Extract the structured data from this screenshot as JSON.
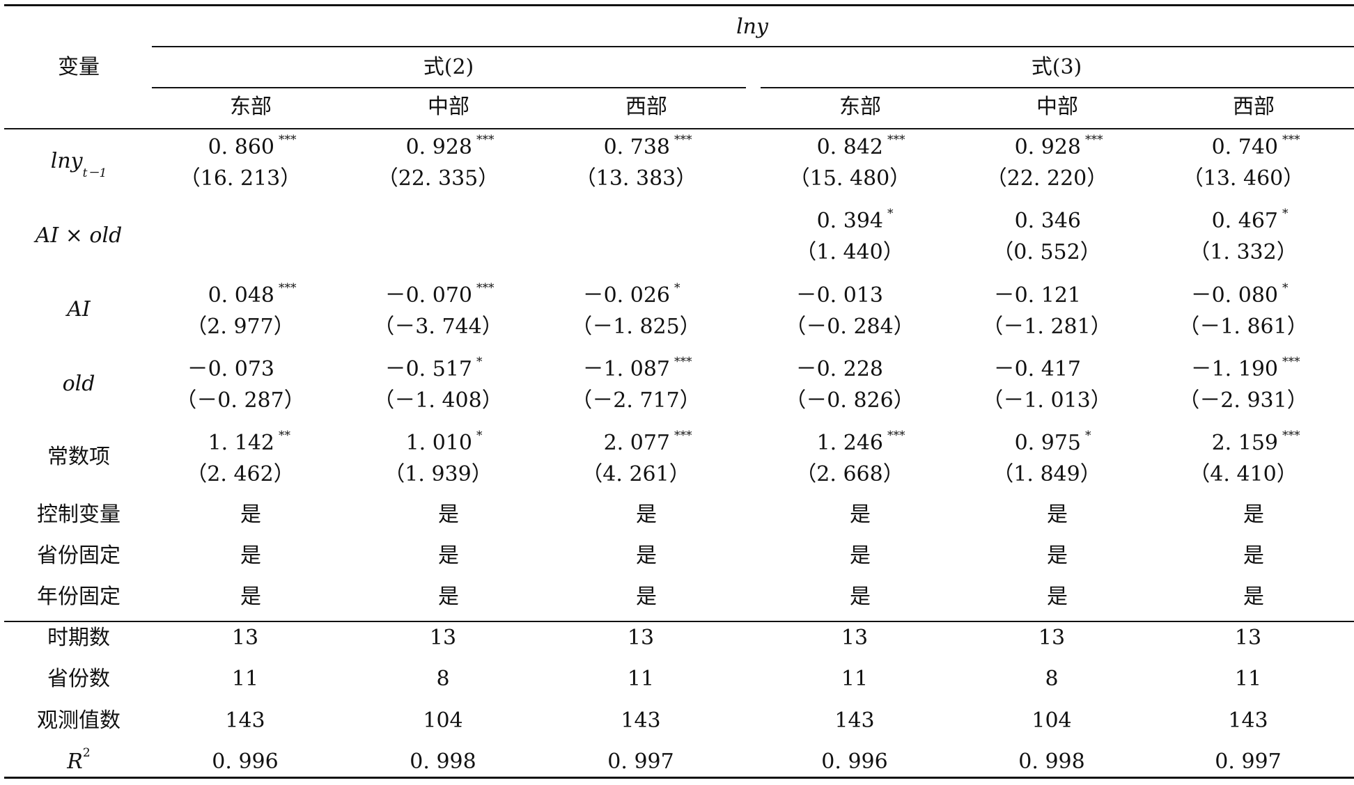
{
  "header": {
    "variable_label": "变量",
    "dependent": "lny",
    "groups": [
      "式(2)",
      "式(3)"
    ],
    "regions": [
      "东部",
      "中部",
      "西部",
      "东部",
      "中部",
      "西部"
    ]
  },
  "rows": [
    {
      "label": "lny",
      "label_sub": "t－1",
      "coef": [
        "0. 860",
        "0. 928",
        "0. 738",
        "0. 842",
        "0. 928",
        "0. 740"
      ],
      "stars": [
        "***",
        "***",
        "***",
        "***",
        "***",
        "***"
      ],
      "tstat": [
        "（16. 213）",
        "（22. 335）",
        "（13. 383）",
        "（15. 480）",
        "（22. 220）",
        "（13. 460）"
      ]
    },
    {
      "label": "AI × old",
      "coef": [
        "",
        "",
        "",
        "0. 394",
        "0. 346",
        "0. 467"
      ],
      "stars": [
        "",
        "",
        "",
        "*",
        "",
        "*"
      ],
      "tstat": [
        "",
        "",
        "",
        "（1. 440）",
        "（0. 552）",
        "（1. 332）"
      ]
    },
    {
      "label": "AI",
      "coef": [
        "0. 048",
        "－0. 070",
        "－0. 026",
        "－0. 013",
        "－0. 121",
        "－0. 080"
      ],
      "stars": [
        "***",
        "***",
        "*",
        "",
        "",
        "*"
      ],
      "tstat": [
        "（2. 977）",
        "（－3. 744）",
        "（－1. 825）",
        "（－0. 284）",
        "（－1. 281）",
        "（－1. 861）"
      ]
    },
    {
      "label": "old",
      "coef": [
        "－0. 073",
        "－0. 517",
        "－1. 087",
        "－0. 228",
        "－0. 417",
        "－1. 190"
      ],
      "stars": [
        "",
        "*",
        "***",
        "",
        "",
        "***"
      ],
      "tstat": [
        "（－0. 287）",
        "（－1. 408）",
        "（－2. 717）",
        "（－0. 826）",
        "（－1. 013）",
        "（－2. 931）"
      ]
    },
    {
      "label": "常数项",
      "coef": [
        "1. 142",
        "1. 010",
        "2. 077",
        "1. 246",
        "0. 975",
        "2. 159"
      ],
      "stars": [
        "**",
        "*",
        "***",
        "***",
        "*",
        "***"
      ],
      "tstat": [
        "（2. 462）",
        "（1. 939）",
        "（4. 261）",
        "（2. 668）",
        "（1. 849）",
        "（4. 410）"
      ]
    }
  ],
  "fixed_rows": [
    {
      "label": "控制变量",
      "values": [
        "是",
        "是",
        "是",
        "是",
        "是",
        "是"
      ]
    },
    {
      "label": "省份固定",
      "values": [
        "是",
        "是",
        "是",
        "是",
        "是",
        "是"
      ]
    },
    {
      "label": "年份固定",
      "values": [
        "是",
        "是",
        "是",
        "是",
        "是",
        "是"
      ]
    }
  ],
  "stat_rows": [
    {
      "label": "时期数",
      "values": [
        "13",
        "13",
        "13",
        "13",
        "13",
        "13"
      ]
    },
    {
      "label": "省份数",
      "values": [
        "11",
        "8",
        "11",
        "11",
        "8",
        "11"
      ]
    },
    {
      "label": "观测值数",
      "values": [
        "143",
        "104",
        "143",
        "143",
        "104",
        "143"
      ]
    },
    {
      "label": "R",
      "label_sup": "2",
      "values": [
        "0. 996",
        "0. 998",
        "0. 997",
        "0. 996",
        "0. 998",
        "0. 997"
      ]
    }
  ]
}
